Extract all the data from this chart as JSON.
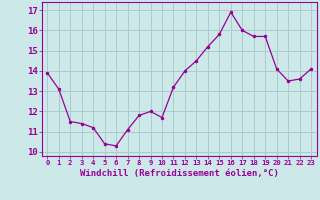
{
  "x": [
    0,
    1,
    2,
    3,
    4,
    5,
    6,
    7,
    8,
    9,
    10,
    11,
    12,
    13,
    14,
    15,
    16,
    17,
    18,
    19,
    20,
    21,
    22,
    23
  ],
  "y": [
    13.9,
    13.1,
    11.5,
    11.4,
    11.2,
    10.4,
    10.3,
    11.1,
    11.8,
    12.0,
    11.7,
    13.2,
    14.0,
    14.5,
    15.2,
    15.8,
    16.9,
    16.0,
    15.7,
    15.7,
    14.1,
    13.5,
    13.6,
    14.1
  ],
  "line_color": "#990099",
  "marker": ".",
  "marker_size": 3,
  "bg_color": "#cce8e8",
  "grid_color": "#aacccc",
  "xlabel": "Windchill (Refroidissement éolien,°C)",
  "ylabel_ticks": [
    10,
    11,
    12,
    13,
    14,
    15,
    16,
    17
  ],
  "xlim": [
    -0.5,
    23.5
  ],
  "ylim": [
    9.8,
    17.4
  ],
  "xticks": [
    0,
    1,
    2,
    3,
    4,
    5,
    6,
    7,
    8,
    9,
    10,
    11,
    12,
    13,
    14,
    15,
    16,
    17,
    18,
    19,
    20,
    21,
    22,
    23
  ],
  "axis_color": "#990099",
  "tick_color": "#990099",
  "label_color": "#990099",
  "font_size_xlabel": 6.5,
  "font_size_yticks": 6.5,
  "font_size_xticks": 5.2
}
